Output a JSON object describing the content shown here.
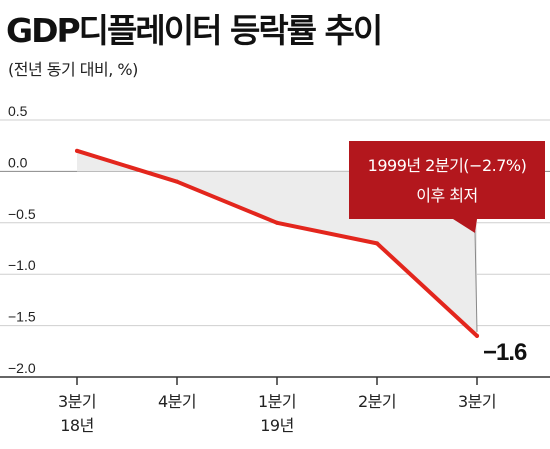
{
  "title": "GDP디플레이터 등락률 추이",
  "subtitle": "(전년 동기 대비, %)",
  "colors": {
    "line": "#e3261d",
    "fill": "#ececec",
    "callout": "#b3171d",
    "axis": "#333333",
    "grid": "#cfcfcf"
  },
  "chart_data": {
    "type": "line",
    "title": "GDP디플레이터 등락률 추이",
    "ylabel": "(전년 동기 대비, %)",
    "ylim": [
      -2.0,
      0.5
    ],
    "yticks": [
      0.5,
      0.0,
      -0.5,
      -1.0,
      -1.5,
      -2.0
    ],
    "ytick_labels": [
      "0.5",
      "0.0",
      "−0.5",
      "−1.0",
      "−1.5",
      "−2.0"
    ],
    "x": [
      {
        "line1": "3분기",
        "line2": "18년"
      },
      {
        "line1": "4분기",
        "line2": ""
      },
      {
        "line1": "1분기",
        "line2": "19년"
      },
      {
        "line1": "2분기",
        "line2": ""
      },
      {
        "line1": "3분기",
        "line2": ""
      }
    ],
    "series": [
      {
        "values": [
          0.2,
          -0.1,
          -0.5,
          -0.7,
          -1.6
        ]
      }
    ],
    "last_value_label": "−1.6",
    "callout": {
      "line1": "1999년 2분기(−2.7%)",
      "line2": "이후 최저"
    },
    "grid": true
  }
}
